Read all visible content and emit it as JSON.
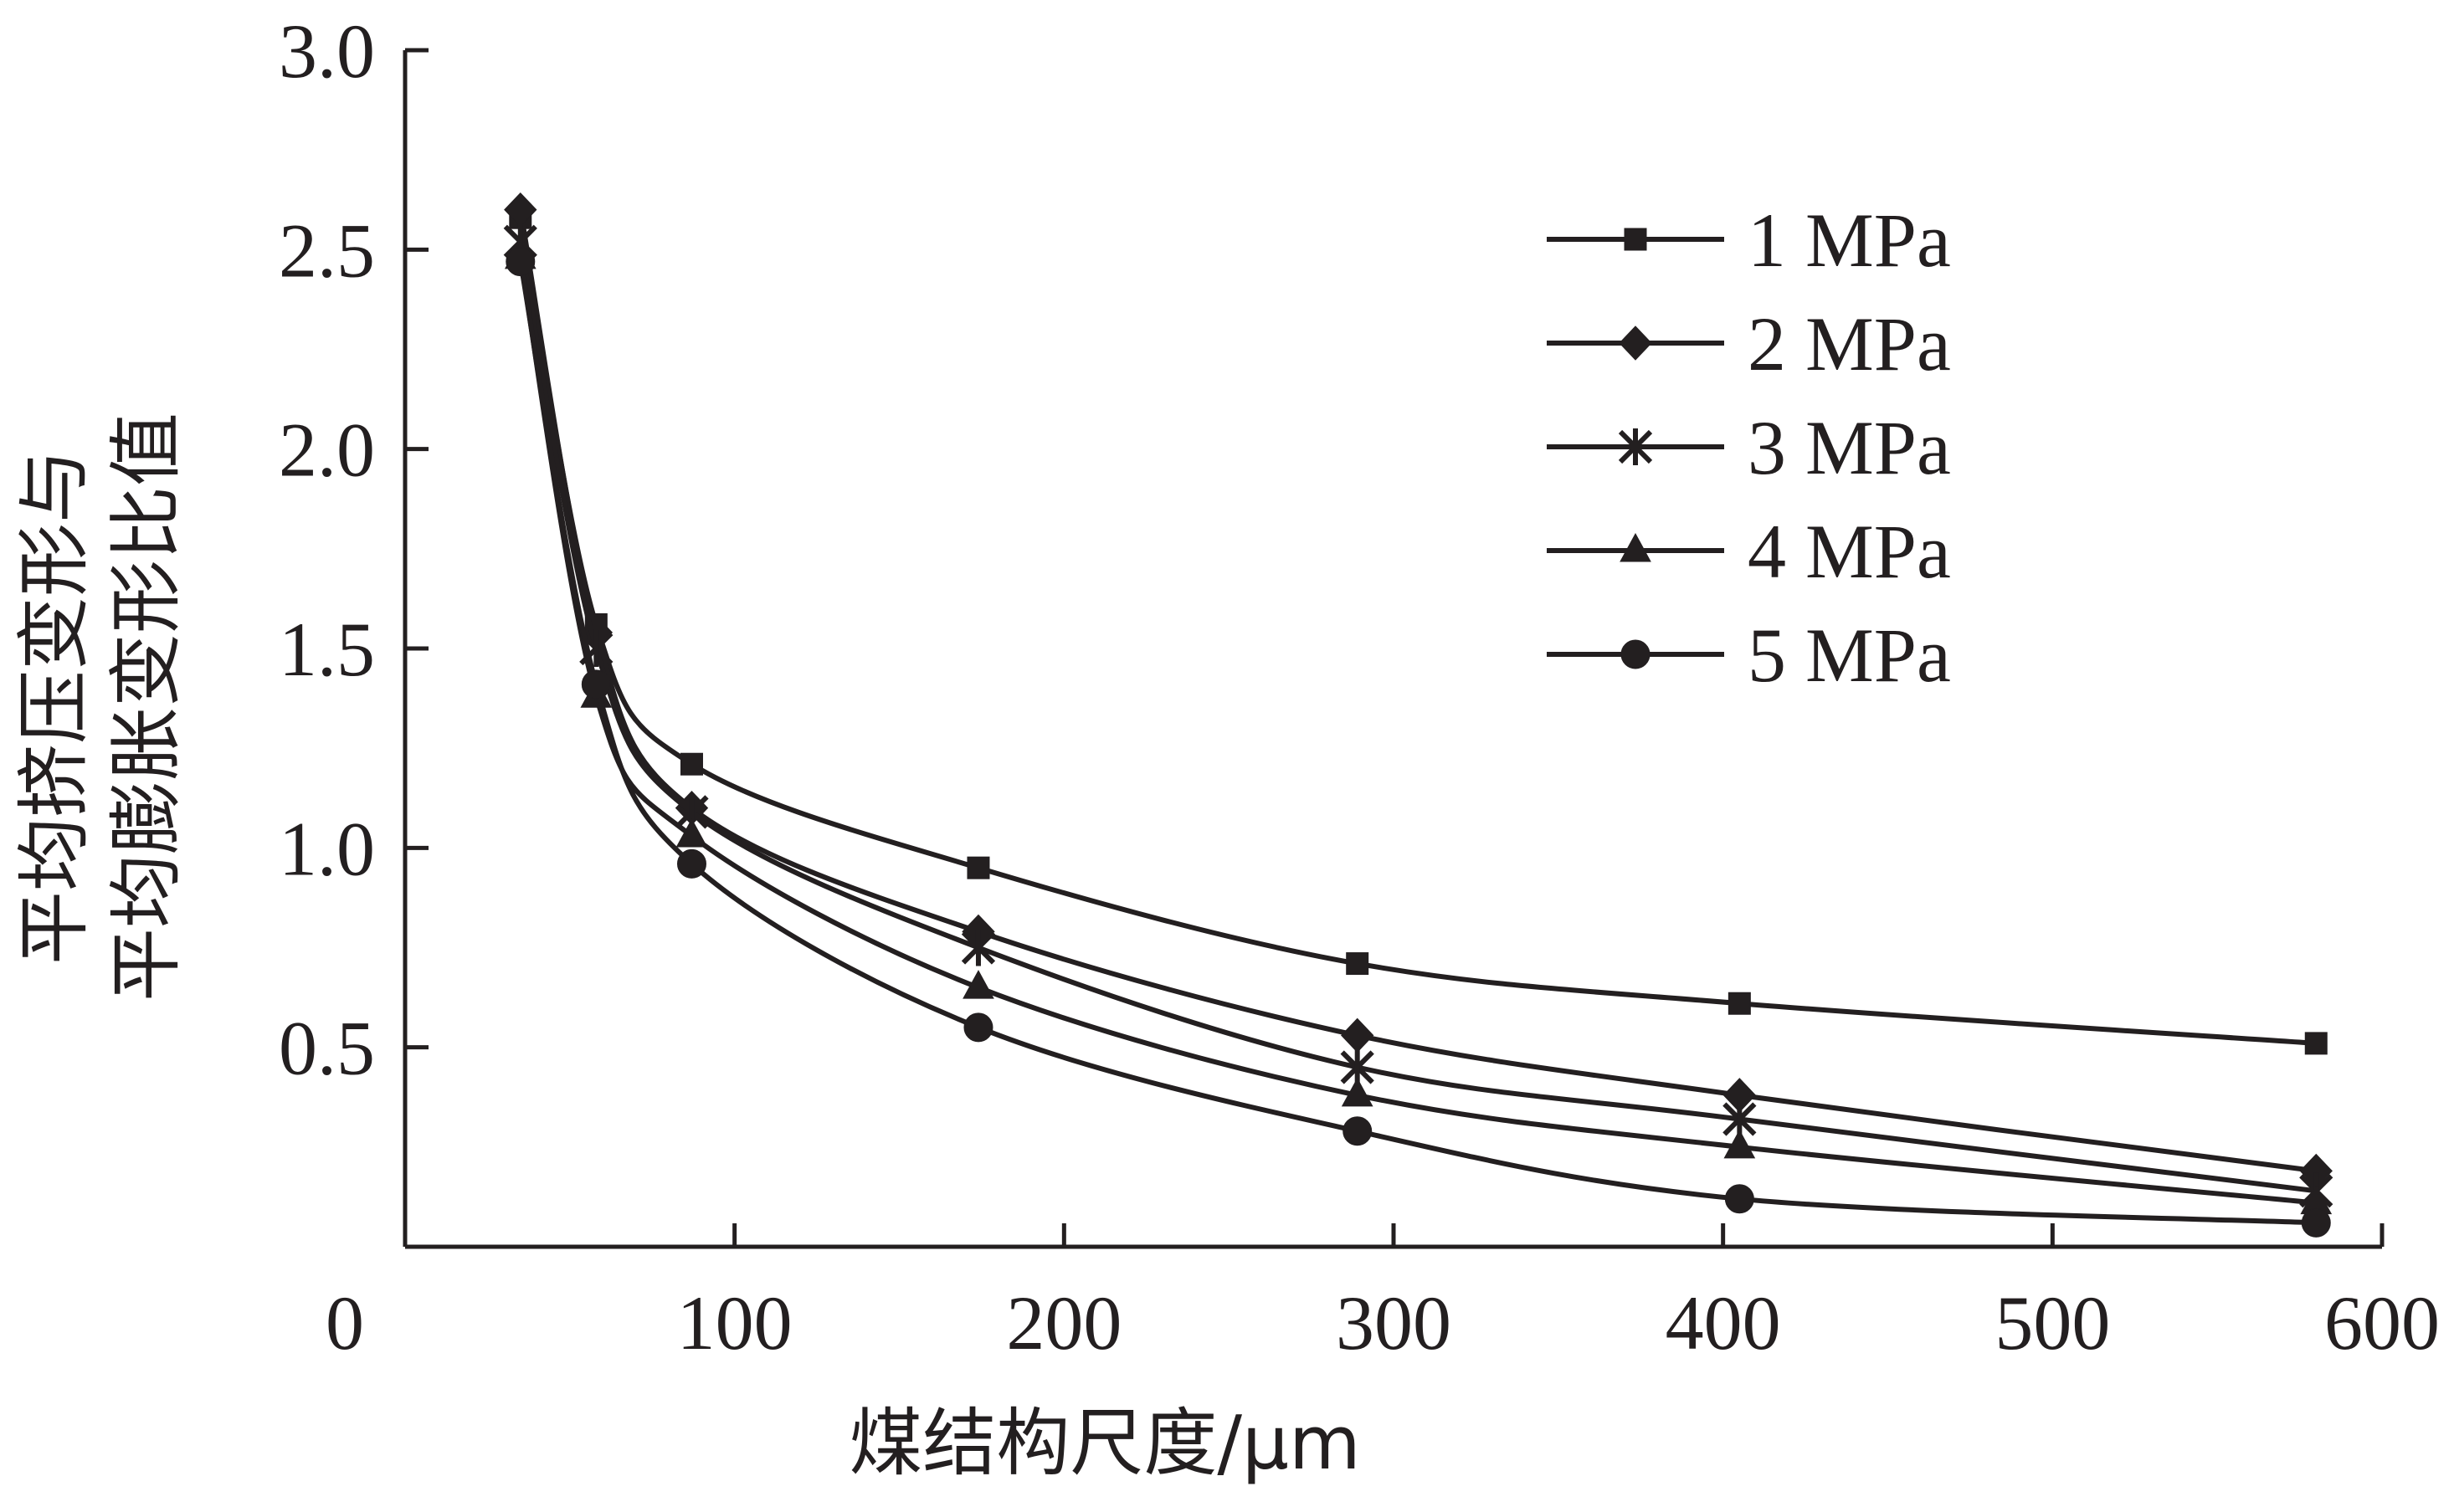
{
  "chart_data": {
    "type": "line",
    "xlabel": "煤结构尺度/μm",
    "ylabel_lines": [
      "平均挤压变形与",
      "平均膨胀变形比值"
    ],
    "xlim": [
      0,
      600
    ],
    "ylim": [
      0,
      3.0
    ],
    "x_ticks": [
      0,
      100,
      200,
      300,
      400,
      500,
      600
    ],
    "x_tick_labels": [
      "0",
      "100",
      "200",
      "300",
      "400",
      "500",
      "600"
    ],
    "y_ticks": [
      0.5,
      1.0,
      1.5,
      2.0,
      2.5,
      3.0
    ],
    "y_tick_labels": [
      "0.5",
      "1.0",
      "1.5",
      "2.0",
      "2.5",
      "3.0"
    ],
    "grid": false,
    "legend_position": "top-right",
    "x": [
      35,
      58,
      87,
      174,
      289,
      405,
      580
    ],
    "series": [
      {
        "name": "1 MPa",
        "marker": "square",
        "values": [
          2.58,
          1.56,
          1.21,
          0.95,
          0.71,
          0.61,
          0.51
        ]
      },
      {
        "name": "2 MPa",
        "marker": "diamond",
        "values": [
          2.6,
          1.54,
          1.1,
          0.79,
          0.53,
          0.38,
          0.19
        ]
      },
      {
        "name": "3 MPa",
        "marker": "star",
        "values": [
          2.52,
          1.5,
          1.09,
          0.75,
          0.45,
          0.32,
          0.14
        ]
      },
      {
        "name": "4 MPa",
        "marker": "triangle",
        "values": [
          2.48,
          1.38,
          1.03,
          0.65,
          0.38,
          0.25,
          0.11
        ]
      },
      {
        "name": "5 MPa",
        "marker": "circle",
        "values": [
          2.47,
          1.41,
          0.96,
          0.55,
          0.29,
          0.12,
          0.06
        ]
      }
    ]
  }
}
